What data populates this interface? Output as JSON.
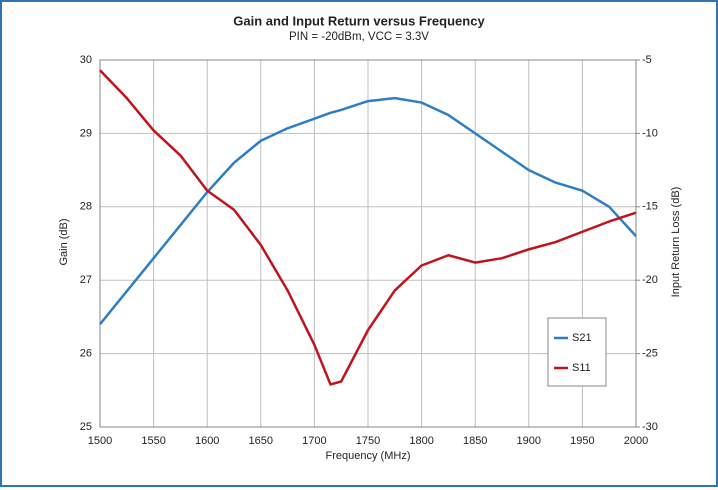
{
  "chart_data": {
    "type": "line",
    "title": "Gain and Input Return versus Frequency",
    "subtitle": "PIN = -20dBm, VCC = 3.3V",
    "x_label": "Frequency (MHz)",
    "y_label": "Gain (dB)",
    "y2_label": "Input Return Loss (dB)",
    "x": [
      1500,
      1525,
      1550,
      1575,
      1600,
      1625,
      1650,
      1675,
      1700,
      1715,
      1725,
      1750,
      1775,
      1800,
      1825,
      1850,
      1875,
      1900,
      1925,
      1950,
      1975,
      2000
    ],
    "series": [
      {
        "name": "S21",
        "color": "#2f7ec4",
        "axis": "y",
        "values": [
          26.4,
          26.85,
          27.3,
          27.75,
          28.2,
          28.6,
          28.9,
          29.07,
          29.2,
          29.28,
          29.32,
          29.44,
          29.48,
          29.42,
          29.25,
          29.0,
          28.75,
          28.5,
          28.33,
          28.22,
          28.0,
          27.6
        ]
      },
      {
        "name": "S11",
        "color": "#c0141c",
        "axis": "y2",
        "values": [
          -5.7,
          -7.6,
          -9.8,
          -11.5,
          -13.9,
          -15.2,
          -17.6,
          -20.7,
          -24.4,
          -27.1,
          -26.9,
          -23.4,
          -20.7,
          -19.0,
          -18.3,
          -18.8,
          -18.5,
          -17.9,
          -17.4,
          -16.7,
          -16.0,
          -15.4
        ]
      }
    ],
    "xlim": [
      1500,
      2000
    ],
    "xticks": [
      1500,
      1550,
      1600,
      1650,
      1700,
      1750,
      1800,
      1850,
      1900,
      1950,
      2000
    ],
    "ylim": [
      25,
      30
    ],
    "yticks": [
      25,
      26,
      27,
      28,
      29,
      30
    ],
    "y2lim": [
      -30,
      -5
    ],
    "y2ticks": [
      -30,
      -25,
      -20,
      -15,
      -10,
      -5
    ],
    "grid": true,
    "legend": "lower right"
  }
}
